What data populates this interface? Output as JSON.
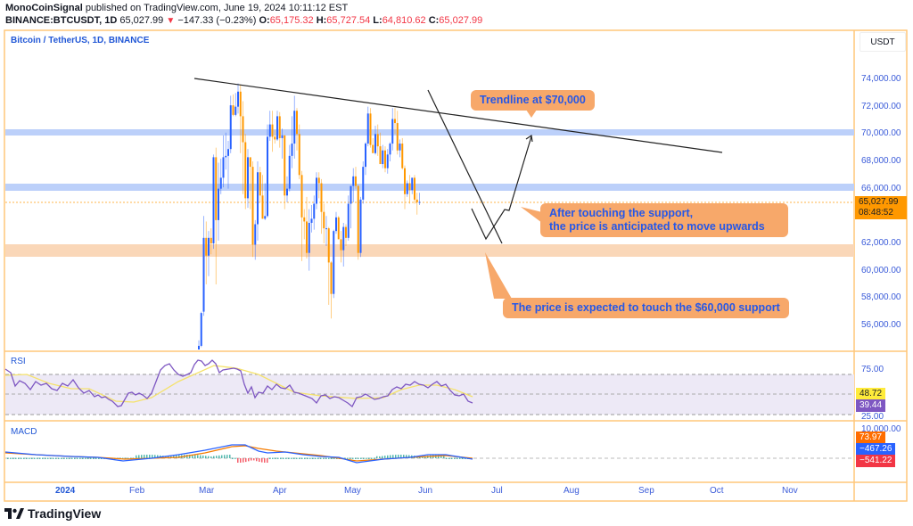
{
  "header": {
    "publisher": "MonoCoinSignal",
    "published_text": " published on TradingView.com, June 19, 2024 10:11:12 EST",
    "symbol": "BINANCE:BTCUSDT, 1D",
    "last": "65,027.99",
    "change_icon": "▼",
    "change": "−147.33 (−0.23%)",
    "o_label": "O:",
    "o": "65,175.32",
    "h_label": "H:",
    "h": "65,727.54",
    "l_label": "L:",
    "l": "64,810.62",
    "c_label": "C:",
    "c": "65,027.99"
  },
  "chart": {
    "title": "Bitcoin / TetherUS, 1D, BINANCE",
    "currency": "USDT",
    "last_price_badge": "65,027.99",
    "countdown": "08:48:52",
    "colors": {
      "up": "#2962ff",
      "down": "#ff9800",
      "border": "#ffc77a",
      "axis_text": "#3a5bd9",
      "resistance_band": "#bcd0fa",
      "support_band": "#fad7b8",
      "callout_bg": "#f7a86a",
      "callout_text": "#2557e8"
    }
  },
  "annotations": {
    "trendline": "Trendline at $70,000",
    "after_support_1": "After touching the support,",
    "after_support_2": "the price is anticipated to move upwards",
    "expected_support": "The price is expected to touch the $60,000 support"
  },
  "panes": {
    "rsi_label": "RSI",
    "macd_label": "MACD",
    "rsi_ticks": [
      "75.00",
      "25.00"
    ],
    "rsi_ma_badge": "48.72",
    "rsi_badge": "39.44",
    "macd_top_tick": "10,000.00",
    "macd_hist_badge": "73.97",
    "macd_line_badge": "−467.26",
    "macd_signal_badge": "−541.22"
  },
  "footer": {
    "brand": "TradingView"
  },
  "chart_data": {
    "type": "candlestick",
    "title": "Bitcoin / TetherUS, 1D, BINANCE",
    "ylabel": "USDT",
    "ylim": [
      54500,
      76000
    ],
    "y_ticks": [
      "74,000.00",
      "72,000.00",
      "70,000.00",
      "68,000.00",
      "66,000.00",
      "62,000.00",
      "60,000.00",
      "58,000.00",
      "56,000.00"
    ],
    "x_ticks": [
      "2024",
      "Feb",
      "Mar",
      "Apr",
      "May",
      "Jun",
      "Jul",
      "Aug",
      "Sep",
      "Oct",
      "Nov"
    ],
    "levels": {
      "resistance_upper": 70000,
      "resistance_lower": 66000,
      "support": 61500,
      "last": 65027.99
    },
    "ohlc_start": "2024-02-26",
    "ohlc": [
      [
        51700,
        54900,
        50900,
        54500
      ],
      [
        54500,
        57000,
        54400,
        56900
      ],
      [
        57000,
        64000,
        56700,
        62400
      ],
      [
        62400,
        63600,
        59000,
        61100
      ],
      [
        61100,
        62900,
        59600,
        62400
      ],
      [
        62400,
        63100,
        61200,
        62000
      ],
      [
        62000,
        68500,
        61600,
        68300
      ],
      [
        68300,
        69000,
        59000,
        63700
      ],
      [
        63700,
        67900,
        62200,
        66000
      ],
      [
        66000,
        68200,
        65600,
        66800
      ],
      [
        66800,
        69900,
        66100,
        68300
      ],
      [
        68300,
        70100,
        67400,
        68400
      ],
      [
        68400,
        69500,
        66000,
        68900
      ],
      [
        68900,
        72800,
        68600,
        72100
      ],
      [
        72100,
        72900,
        71300,
        71400
      ],
      [
        71400,
        73000,
        71300,
        72000
      ],
      [
        72000,
        73700,
        71500,
        73100
      ],
      [
        73100,
        73600,
        68600,
        71300
      ],
      [
        71300,
        72400,
        65600,
        69400
      ],
      [
        69400,
        70000,
        64500,
        65300
      ],
      [
        65300,
        68900,
        64600,
        68300
      ],
      [
        68300,
        68100,
        64500,
        67600
      ],
      [
        67600,
        68000,
        61000,
        61900
      ],
      [
        61900,
        63700,
        60800,
        63400
      ],
      [
        63400,
        68000,
        62200,
        67200
      ],
      [
        67200,
        67600,
        65000,
        65500
      ],
      [
        65500,
        67000,
        63800,
        63800
      ],
      [
        63800,
        66400,
        63700,
        64000
      ],
      [
        64000,
        70700,
        63900,
        69800
      ],
      [
        69800,
        71700,
        69500,
        70700
      ],
      [
        70700,
        71700,
        68700,
        69800
      ],
      [
        69800,
        70300,
        69300,
        69600
      ],
      [
        69600,
        71700,
        69500,
        71300
      ],
      [
        71300,
        71600,
        69000,
        69700
      ],
      [
        69700,
        70400,
        68200,
        69900
      ],
      [
        69900,
        69900,
        64500,
        65500
      ],
      [
        65500,
        66900,
        65000,
        66000
      ],
      [
        66000,
        69200,
        65800,
        68400
      ],
      [
        68400,
        71300,
        67500,
        69300
      ],
      [
        69300,
        72800,
        68200,
        71700
      ],
      [
        71700,
        71900,
        68800,
        70000
      ],
      [
        70000,
        70700,
        66700,
        67000
      ],
      [
        67000,
        67300,
        60700,
        63900
      ],
      [
        63900,
        64500,
        62300,
        63600
      ],
      [
        63600,
        65400,
        60900,
        61300
      ],
      [
        61300,
        64500,
        60000,
        63500
      ],
      [
        63500,
        64800,
        62800,
        63800
      ],
      [
        63800,
        65500,
        63000,
        64900
      ],
      [
        64900,
        67200,
        64500,
        66800
      ],
      [
        66800,
        67200,
        65300,
        66400
      ],
      [
        66400,
        66700,
        62700,
        64300
      ],
      [
        64300,
        64900,
        62000,
        63100
      ],
      [
        63100,
        64000,
        61800,
        63100
      ],
      [
        63100,
        63200,
        57500,
        60600
      ],
      [
        60600,
        60700,
        56500,
        58300
      ],
      [
        58300,
        63000,
        58000,
        62900
      ],
      [
        62900,
        64300,
        62700,
        63900
      ],
      [
        63900,
        64000,
        62300,
        62300
      ],
      [
        62300,
        62900,
        60600,
        61500
      ],
      [
        61500,
        63500,
        60300,
        63200
      ],
      [
        63200,
        63400,
        61800,
        62400
      ],
      [
        62400,
        65500,
        62200,
        64900
      ],
      [
        64900,
        66200,
        63100,
        66200
      ],
      [
        66200,
        67500,
        65000,
        66900
      ],
      [
        66900,
        67600,
        66000,
        66200
      ],
      [
        66200,
        66300,
        60800,
        61300
      ],
      [
        61300,
        65400,
        61000,
        65200
      ],
      [
        65200,
        68000,
        64900,
        67600
      ],
      [
        67600,
        69400,
        67000,
        69300
      ],
      [
        69300,
        72000,
        69100,
        71500
      ],
      [
        71500,
        71900,
        69000,
        69200
      ],
      [
        69200,
        69700,
        68700,
        68600
      ],
      [
        68600,
        70600,
        68500,
        70000
      ],
      [
        70000,
        70700,
        68400,
        69100
      ],
      [
        69100,
        70100,
        67800,
        67800
      ],
      [
        67800,
        69200,
        67500,
        68800
      ],
      [
        68800,
        69100,
        67200,
        67500
      ],
      [
        67500,
        68900,
        67100,
        68500
      ],
      [
        68500,
        69400,
        68000,
        69300
      ],
      [
        69300,
        71900,
        68800,
        71100
      ],
      [
        71100,
        71900,
        70000,
        70800
      ],
      [
        70800,
        71700,
        68500,
        68800
      ],
      [
        68800,
        69600,
        68300,
        69300
      ],
      [
        69300,
        69700,
        67400,
        67500
      ],
      [
        67500,
        67700,
        64500,
        65600
      ],
      [
        65600,
        66600,
        65400,
        66400
      ],
      [
        66400,
        67000,
        64900,
        65900
      ],
      [
        65900,
        66800,
        65600,
        66800
      ],
      [
        66800,
        67000,
        64900,
        65200
      ],
      [
        65200,
        65700,
        64100,
        65000
      ],
      [
        65000,
        65700,
        64800,
        65028
      ]
    ]
  }
}
